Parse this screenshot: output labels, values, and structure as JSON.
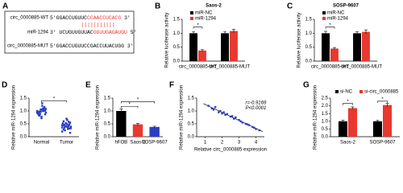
{
  "panel_a": {
    "panel": "A",
    "rows": [
      {
        "name": "circ_0000885-WT",
        "sequence": "5'GGACCUGUUC",
        "highlight": "CCAACCUCACG",
        "end": "3'"
      },
      {
        "name": "miR-1294",
        "sequence": "3' UCUGUUGUUAC",
        "highlight": "GGUUGAGAUGU",
        "end": "5'"
      },
      {
        "name": "circ_0000885-MUT",
        "sequence": "5'GGACCUGUUCCGACCUUACUGG",
        "highlight": "",
        "end": "3'"
      }
    ]
  },
  "chart_data": [
    {
      "panel": "B",
      "type": "bar",
      "title": "Saos-2",
      "ylabel": "Relative luciferase activity",
      "categories": [
        "circ_0000885-WT",
        "circ_0000885-MUT"
      ],
      "series": [
        {
          "name": "miR-NC",
          "color": "#000000",
          "values": [
            1.0,
            1.0
          ],
          "errors": [
            0.06,
            0.06
          ]
        },
        {
          "name": "miR-1294",
          "color": "#e8382f",
          "values": [
            0.38,
            1.08
          ],
          "errors": [
            0.03,
            0.06
          ]
        }
      ],
      "ylim": [
        0,
        1.5
      ],
      "yticks": [
        {
          "value": 0,
          "label": "0.0"
        },
        0.5,
        {
          "value": 1,
          "label": "1.0"
        },
        1.5
      ],
      "annotations": [
        "*"
      ]
    },
    {
      "panel": "C",
      "type": "bar",
      "title": "SOSP-9607",
      "ylabel": "Relative luciferase activity",
      "categories": [
        "circ_0000885-WT",
        "circ_0000885-MUT"
      ],
      "series": [
        {
          "name": "miR-NC",
          "color": "#000000",
          "values": [
            1.0,
            1.0
          ],
          "errors": [
            0.07,
            0.05
          ]
        },
        {
          "name": "miR-1294",
          "color": "#e8382f",
          "values": [
            0.45,
            1.05
          ],
          "errors": [
            0.04,
            0.07
          ]
        }
      ],
      "ylim": [
        0,
        1.5
      ],
      "yticks": [
        {
          "value": 0,
          "label": "0.0"
        },
        0.5,
        {
          "value": 1,
          "label": "1.0"
        },
        1.5
      ],
      "annotations": [
        "*"
      ]
    },
    {
      "panel": "D",
      "type": "strip",
      "ylabel": "Relative miR-1294 expression",
      "color": "#2a3fc0",
      "categories": [
        "Normal",
        "Tumor"
      ],
      "values": [
        [
          0.98,
          1.05,
          0.92,
          1.1,
          0.85,
          1.0,
          0.95,
          1.15,
          0.88,
          1.02,
          0.97,
          1.08,
          0.78,
          0.93,
          1.2,
          0.9,
          1.0,
          0.96,
          1.04,
          0.82,
          1.12,
          0.99,
          0.87,
          1.06,
          0.94,
          0.72,
          1.0,
          1.3
        ],
        [
          0.45,
          0.38,
          0.52,
          0.3,
          0.6,
          0.42,
          0.35,
          0.48,
          0.25,
          0.55,
          0.4,
          0.33,
          0.5,
          0.2,
          0.65,
          0.44,
          0.37,
          0.28,
          0.58,
          0.46,
          0.32,
          0.41,
          0.15,
          0.53,
          0.39,
          0.7,
          0.36,
          0.47
        ]
      ],
      "ylim": [
        0,
        1.5
      ],
      "yticks": [
        {
          "value": 0,
          "label": "0.0"
        },
        0.5,
        {
          "value": 1,
          "label": "1.0"
        },
        1.5
      ],
      "annotations": [
        "*"
      ]
    },
    {
      "panel": "E",
      "type": "bar",
      "ylabel": "Relative miR-1294 expression",
      "categories": [
        "hFOB",
        "Saos-2",
        "SOSP-9607"
      ],
      "values": [
        1.0,
        0.48,
        0.38
      ],
      "errors": [
        0.08,
        0.04,
        0.03
      ],
      "colors": [
        "#000000",
        "#e8382f",
        "#2a3fc0"
      ],
      "ylim": [
        0,
        1.5
      ],
      "yticks": [
        {
          "value": 0,
          "label": "0.0"
        },
        0.5,
        {
          "value": 1,
          "label": "1.0"
        },
        1.5
      ],
      "annotations": [
        "*",
        "*"
      ]
    },
    {
      "panel": "F",
      "type": "scatter",
      "xlabel": "Relative circ_0000885 expression",
      "ylabel": "Relative miR-1294 expression",
      "color": "#2a3fc0",
      "x": [
        1.2,
        1.4,
        1.5,
        1.6,
        1.8,
        1.9,
        2.0,
        2.1,
        2.2,
        2.3,
        2.5,
        2.6,
        2.7,
        2.8,
        3.0,
        3.1,
        3.2,
        3.4,
        3.5,
        3.6,
        3.8,
        3.9,
        4.0,
        4.2
      ],
      "y": [
        1.2,
        1.1,
        1.05,
        1.15,
        0.95,
        1.0,
        0.9,
        0.95,
        0.85,
        0.88,
        0.78,
        0.8,
        0.7,
        0.75,
        0.65,
        0.6,
        0.55,
        0.5,
        0.48,
        0.45,
        0.38,
        0.35,
        0.3,
        0.25
      ],
      "xlim": [
        0.5,
        4.5
      ],
      "xticks": [
        1,
        2,
        3,
        4
      ],
      "ylim": [
        0,
        1.5
      ],
      "yticks": [
        {
          "value": 0,
          "label": "0.0"
        },
        0.5,
        {
          "value": 1,
          "label": "1.0"
        },
        1.5
      ],
      "annotations": [
        "r=-0.9169",
        "P<0.0001"
      ]
    },
    {
      "panel": "G",
      "type": "bar",
      "ylabel": "Relative miR-1294 expression",
      "categories": [
        "Saos-2",
        "SOSP-9607"
      ],
      "series": [
        {
          "name": "si-NC",
          "color": "#000000",
          "values": [
            1.0,
            1.0
          ],
          "errors": [
            0.06,
            0.05
          ]
        },
        {
          "name": "si-circ_0000885",
          "color": "#e8382f",
          "values": [
            1.85,
            2.05
          ],
          "errors": [
            0.08,
            0.1
          ]
        }
      ],
      "ylim": [
        0,
        2.5
      ],
      "yticks": [
        {
          "value": 0,
          "label": "0.0"
        },
        0.5,
        {
          "value": 1,
          "label": "1.0"
        },
        1.5,
        {
          "value": 2,
          "label": "2.0"
        },
        2.5
      ],
      "annotations": [
        "*",
        "*"
      ]
    }
  ]
}
